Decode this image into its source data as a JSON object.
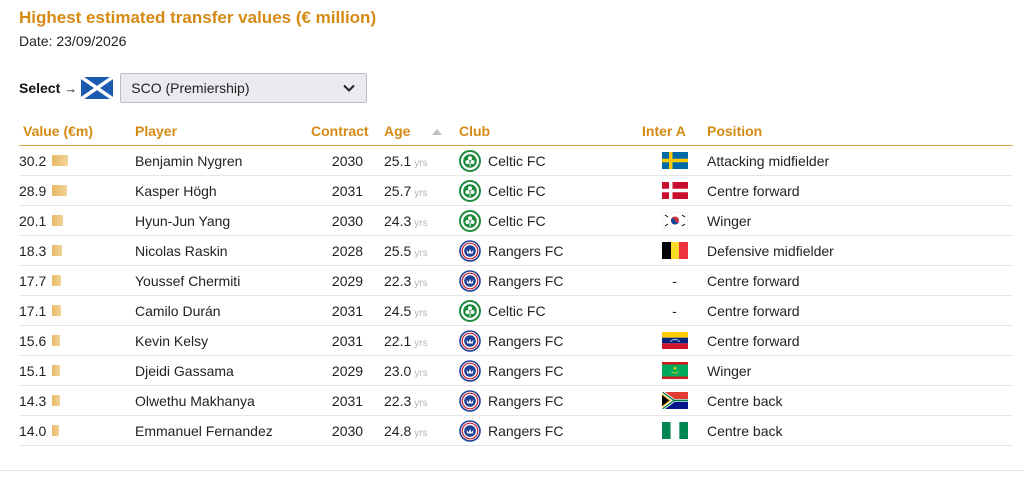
{
  "page": {
    "title": "Highest estimated transfer values (€ million)",
    "date_label": "Date: 23/09/2026"
  },
  "select": {
    "label": "Select",
    "arrow": "→",
    "flag_icon": "scotland-flag-icon",
    "value": "SCO (Premiership)"
  },
  "table": {
    "headers": {
      "value": "Value (€m)",
      "player": "Player",
      "contract": "Contract",
      "age": "Age",
      "club": "Club",
      "inter": "Inter A",
      "position": "Position"
    },
    "age_unit": "yrs",
    "max_value": 30.2,
    "rows": [
      {
        "value": "30.2",
        "player": "Benjamin Nygren",
        "contract": "2030",
        "age": "25.1",
        "club": "Celtic FC",
        "club_icon": "celtic-crest-icon",
        "inter": "flag-sweden",
        "position": "Attacking midfielder"
      },
      {
        "value": "28.9",
        "player": "Kasper Högh",
        "contract": "2031",
        "age": "25.7",
        "club": "Celtic FC",
        "club_icon": "celtic-crest-icon",
        "inter": "flag-denmark",
        "position": "Centre forward"
      },
      {
        "value": "20.1",
        "player": "Hyun-Jun Yang",
        "contract": "2030",
        "age": "24.3",
        "club": "Celtic FC",
        "club_icon": "celtic-crest-icon",
        "inter": "flag-south-korea",
        "position": "Winger"
      },
      {
        "value": "18.3",
        "player": "Nicolas Raskin",
        "contract": "2028",
        "age": "25.5",
        "club": "Rangers FC",
        "club_icon": "rangers-crest-icon",
        "inter": "flag-belgium",
        "position": "Defensive midfielder"
      },
      {
        "value": "17.7",
        "player": "Youssef Chermiti",
        "contract": "2029",
        "age": "22.3",
        "club": "Rangers FC",
        "club_icon": "rangers-crest-icon",
        "inter": "-",
        "position": "Centre forward"
      },
      {
        "value": "17.1",
        "player": "Camilo Durán",
        "contract": "2031",
        "age": "24.5",
        "club": "Celtic FC",
        "club_icon": "celtic-crest-icon",
        "inter": "-",
        "position": "Centre forward"
      },
      {
        "value": "15.6",
        "player": "Kevin Kelsy",
        "contract": "2031",
        "age": "22.1",
        "club": "Rangers FC",
        "club_icon": "rangers-crest-icon",
        "inter": "flag-venezuela",
        "position": "Centre forward"
      },
      {
        "value": "15.1",
        "player": "Djeidi Gassama",
        "contract": "2029",
        "age": "23.0",
        "club": "Rangers FC",
        "club_icon": "rangers-crest-icon",
        "inter": "flag-mauritania",
        "position": "Winger"
      },
      {
        "value": "14.3",
        "player": "Olwethu Makhanya",
        "contract": "2031",
        "age": "22.3",
        "club": "Rangers FC",
        "club_icon": "rangers-crest-icon",
        "inter": "flag-south-africa",
        "position": "Centre back"
      },
      {
        "value": "14.0",
        "player": "Emmanuel Fernandez",
        "contract": "2030",
        "age": "24.8",
        "club": "Rangers FC",
        "club_icon": "rangers-crest-icon",
        "inter": "flag-nigeria",
        "position": "Centre back"
      }
    ]
  },
  "colors": {
    "accent": "#d58a14",
    "bar": "#ebc47a"
  }
}
